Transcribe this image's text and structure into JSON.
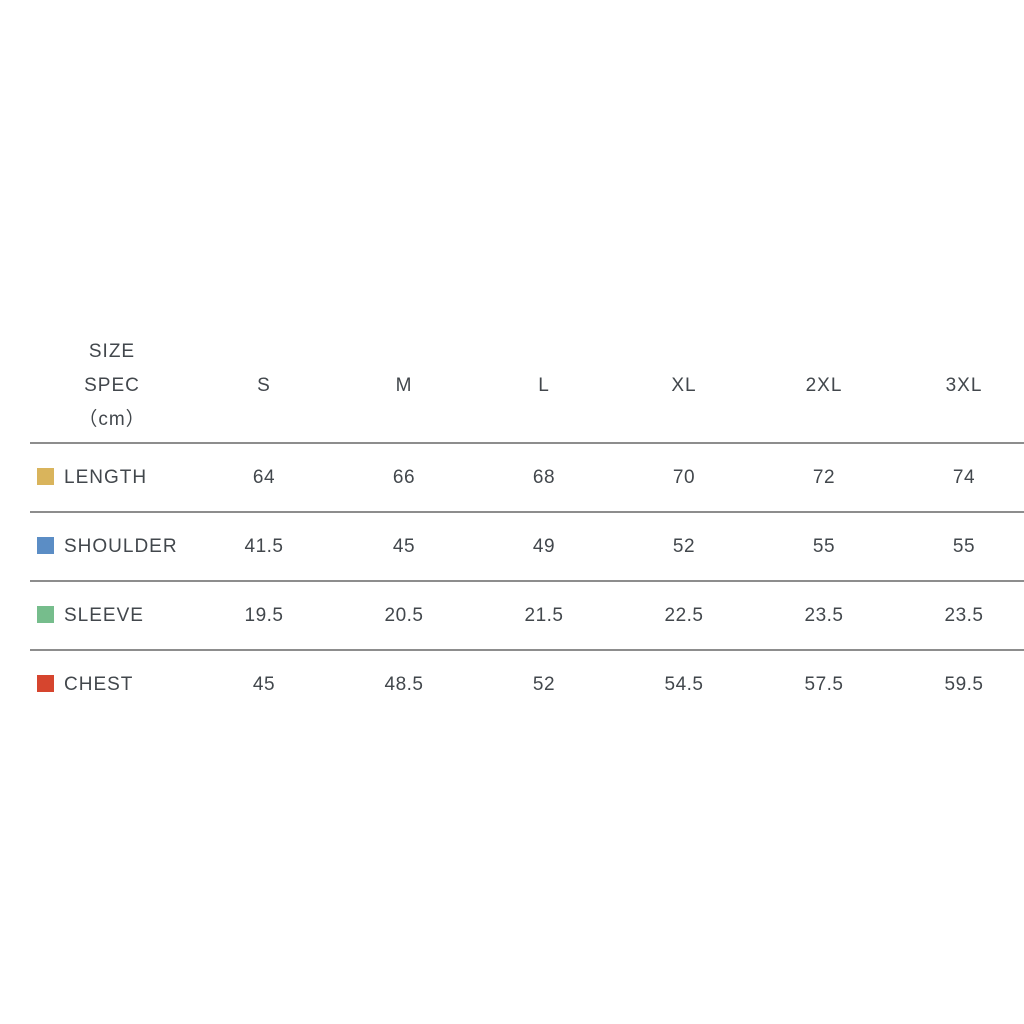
{
  "chart_data": {
    "type": "table",
    "title": "SIZE SPEC（cm）",
    "header_lines": [
      "SIZE",
      "SPEC",
      "（cm）"
    ],
    "columns": [
      "S",
      "M",
      "L",
      "XL",
      "2XL",
      "3XL"
    ],
    "rows": [
      {
        "label": "LENGTH",
        "swatch_color": "#d9b45c",
        "values": [
          "64",
          "66",
          "68",
          "70",
          "72",
          "74"
        ]
      },
      {
        "label": "SHOULDER",
        "swatch_color": "#5b8dc5",
        "values": [
          "41.5",
          "45",
          "49",
          "52",
          "55",
          "55"
        ]
      },
      {
        "label": "SLEEVE",
        "swatch_color": "#76bd8c",
        "values": [
          "19.5",
          "20.5",
          "21.5",
          "22.5",
          "23.5",
          "23.5"
        ]
      },
      {
        "label": "CHEST",
        "swatch_color": "#d6452e",
        "values": [
          "45",
          "48.5",
          "52",
          "54.5",
          "57.5",
          "59.5"
        ]
      }
    ],
    "layout": {
      "divider_color": "#8d8d8d",
      "text_color": "#42474c",
      "background": "#ffffff",
      "grid": "horizontal-only",
      "legend_position": "inline-row-swatches"
    }
  }
}
